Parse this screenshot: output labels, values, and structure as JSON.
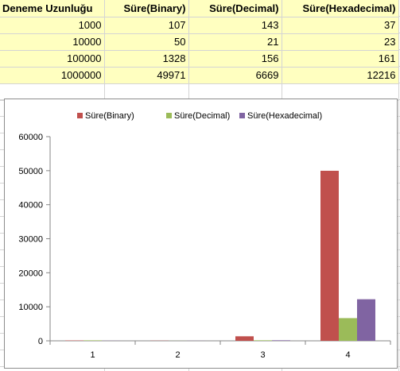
{
  "table": {
    "headers": [
      "Deneme Uzunluğu",
      "Süre(Binary)",
      "Süre(Decimal)",
      "Süre(Hexadecimal)"
    ],
    "rows": [
      [
        "1000",
        "107",
        "143",
        "37"
      ],
      [
        "10000",
        "50",
        "21",
        "23"
      ],
      [
        "100000",
        "1328",
        "156",
        "161"
      ],
      [
        "1000000",
        "49971",
        "6669",
        "12216"
      ]
    ]
  },
  "colors": {
    "binary": "#c0504d",
    "decimal": "#9bbb59",
    "hexadecimal": "#8064a2",
    "table_fill": "#ffffc0",
    "gridline": "#d4d4d4"
  },
  "chart_data": {
    "type": "bar",
    "categories": [
      "1",
      "2",
      "3",
      "4"
    ],
    "series": [
      {
        "name": "Süre(Binary)",
        "values": [
          107,
          50,
          1328,
          49971
        ]
      },
      {
        "name": "Süre(Decimal)",
        "values": [
          143,
          21,
          156,
          6669
        ]
      },
      {
        "name": "Süre(Hexadecimal)",
        "values": [
          37,
          23,
          161,
          12216
        ]
      }
    ],
    "title": "",
    "xlabel": "",
    "ylabel": "",
    "ylim": [
      0,
      60000
    ],
    "yticks": [
      "0",
      "10000",
      "20000",
      "30000",
      "40000",
      "50000",
      "60000"
    ],
    "grid": false,
    "legend": "top"
  }
}
